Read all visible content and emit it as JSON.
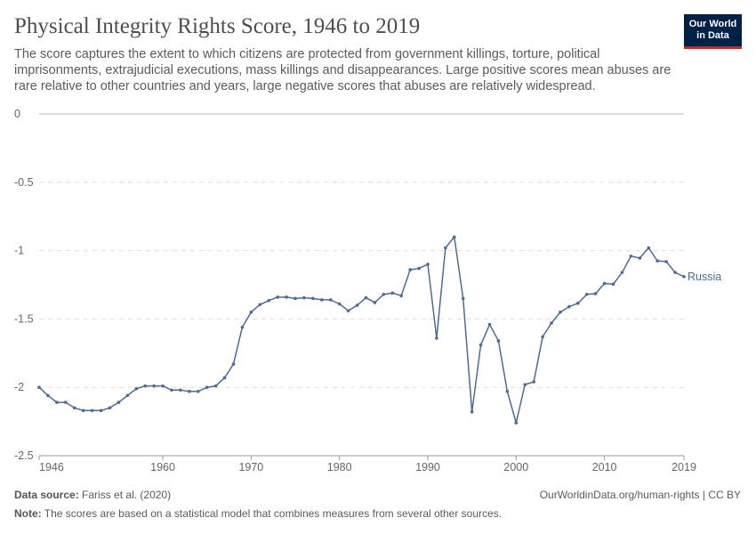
{
  "header": {
    "title": "Physical Integrity Rights Score, 1946 to 2019",
    "subtitle": "The score captures the extent to which citizens are protected from government killings, torture, political imprisonments, extrajudicial executions, mass killings and disappearances. Large positive scores mean abuses are rare relative to other countries and years, large negative scores that abuses are relatively widespread.",
    "logo_line1": "Our World",
    "logo_line2": "in Data"
  },
  "chart_data": {
    "type": "line",
    "title": "Physical Integrity Rights Score, 1946 to 2019",
    "xlabel": "",
    "ylabel": "",
    "xlim": [
      1946,
      2019
    ],
    "ylim": [
      -2.5,
      0
    ],
    "x_ticks": [
      "1946",
      "1960",
      "1970",
      "1980",
      "1990",
      "2000",
      "2010",
      "2019"
    ],
    "y_ticks": [
      "0",
      "-0.5",
      "-1",
      "-1.5",
      "-2",
      "-2.5"
    ],
    "grid": "horizontal dashed",
    "legend": "line-end label",
    "series": [
      {
        "name": "Russia",
        "color": "#4c6a9c",
        "x": [
          1946,
          1947,
          1948,
          1949,
          1950,
          1951,
          1952,
          1953,
          1954,
          1955,
          1956,
          1957,
          1958,
          1959,
          1960,
          1961,
          1962,
          1963,
          1964,
          1965,
          1966,
          1967,
          1968,
          1969,
          1970,
          1971,
          1972,
          1973,
          1974,
          1975,
          1976,
          1977,
          1978,
          1979,
          1980,
          1981,
          1982,
          1983,
          1984,
          1985,
          1986,
          1987,
          1988,
          1989,
          1990,
          1991,
          1992,
          1993,
          1994,
          1995,
          1996,
          1997,
          1998,
          1999,
          2000,
          2001,
          2002,
          2003,
          2004,
          2005,
          2006,
          2007,
          2008,
          2009,
          2010,
          2011,
          2012,
          2013,
          2014,
          2015,
          2016,
          2017,
          2018,
          2019
        ],
        "y": [
          -2.0,
          -2.06,
          -2.11,
          -2.11,
          -2.15,
          -2.17,
          -2.17,
          -2.17,
          -2.15,
          -2.11,
          -2.06,
          -2.01,
          -1.99,
          -1.99,
          -1.99,
          -2.02,
          -2.02,
          -2.03,
          -2.03,
          -2.0,
          -1.99,
          -1.93,
          -1.83,
          -1.56,
          -1.45,
          -1.395,
          -1.365,
          -1.34,
          -1.34,
          -1.35,
          -1.345,
          -1.35,
          -1.36,
          -1.36,
          -1.39,
          -1.44,
          -1.4,
          -1.345,
          -1.38,
          -1.32,
          -1.31,
          -1.33,
          -1.14,
          -1.13,
          -1.1,
          -1.64,
          -0.98,
          -0.9,
          -1.35,
          -2.18,
          -1.69,
          -1.54,
          -1.66,
          -2.03,
          -2.26,
          -1.98,
          -1.96,
          -1.63,
          -1.53,
          -1.45,
          -1.41,
          -1.385,
          -1.32,
          -1.315,
          -1.24,
          -1.245,
          -1.16,
          -1.04,
          -1.055,
          -0.98,
          -1.075,
          -1.08,
          -1.16,
          -1.19
        ]
      }
    ]
  },
  "footer": {
    "source_label": "Data source:",
    "source": "Fariss et al. (2020)",
    "url": "OurWorldinData.org/human-rights | CC BY",
    "note_label": "Note:",
    "note": "The scores are based on a statistical model that combines measures from several other sources."
  }
}
